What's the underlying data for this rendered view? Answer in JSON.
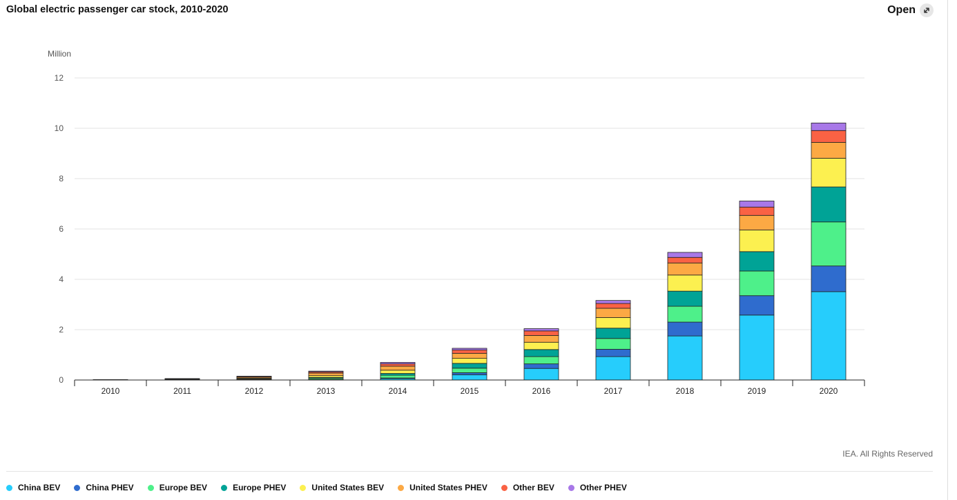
{
  "header": {
    "title": "Global electric passenger car stock, 2010-2020",
    "open_label": "Open",
    "open_icon": "expand-icon"
  },
  "credit": "IEA. All Rights Reserved",
  "chart_data": {
    "type": "bar",
    "stacked": true,
    "ylabel": "Million",
    "xlabel": "",
    "ylim": [
      0,
      12
    ],
    "yticks": [
      0,
      2,
      4,
      6,
      8,
      10,
      12
    ],
    "grid": true,
    "legend_position": "bottom",
    "categories": [
      "2010",
      "2011",
      "2012",
      "2013",
      "2014",
      "2015",
      "2016",
      "2017",
      "2018",
      "2019",
      "2020"
    ],
    "series": [
      {
        "name": "China BEV",
        "color": "#26cdfc",
        "values": [
          0.001,
          0.004,
          0.01,
          0.02,
          0.06,
          0.21,
          0.46,
          0.93,
          1.75,
          2.58,
          3.51
        ]
      },
      {
        "name": "China PHEV",
        "color": "#2f6cce",
        "values": [
          0.0,
          0.0,
          0.001,
          0.003,
          0.02,
          0.08,
          0.18,
          0.29,
          0.55,
          0.77,
          1.02
        ]
      },
      {
        "name": "Europe BEV",
        "color": "#4ef08a",
        "values": [
          0.003,
          0.01,
          0.02,
          0.05,
          0.11,
          0.18,
          0.29,
          0.43,
          0.63,
          0.98,
          1.75
        ]
      },
      {
        "name": "Europe PHEV",
        "color": "#00a396",
        "values": [
          0.0,
          0.001,
          0.01,
          0.03,
          0.07,
          0.19,
          0.28,
          0.41,
          0.6,
          0.77,
          1.39
        ]
      },
      {
        "name": "United States BEV",
        "color": "#fcf050",
        "values": [
          0.002,
          0.01,
          0.03,
          0.07,
          0.13,
          0.2,
          0.29,
          0.42,
          0.64,
          0.86,
          1.14
        ]
      },
      {
        "name": "United States PHEV",
        "color": "#fca944",
        "values": [
          0.0,
          0.01,
          0.04,
          0.1,
          0.16,
          0.2,
          0.27,
          0.37,
          0.48,
          0.58,
          0.63
        ]
      },
      {
        "name": "Other BEV",
        "color": "#fa6244",
        "values": [
          0.01,
          0.02,
          0.03,
          0.05,
          0.09,
          0.13,
          0.18,
          0.19,
          0.22,
          0.33,
          0.47
        ]
      },
      {
        "name": "Other PHEV",
        "color": "#a878e8",
        "values": [
          0.0,
          0.001,
          0.01,
          0.03,
          0.06,
          0.07,
          0.09,
          0.12,
          0.2,
          0.24,
          0.3
        ]
      }
    ]
  }
}
